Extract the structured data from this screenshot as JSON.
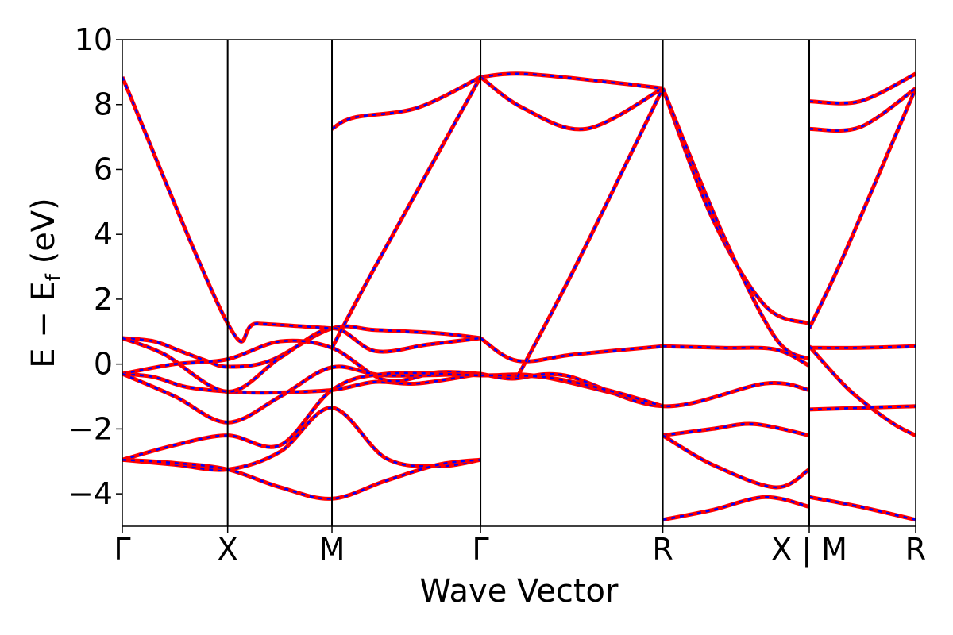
{
  "chart_data": {
    "type": "line",
    "title": "",
    "xlabel": "Wave Vector",
    "ylabel_parts": {
      "main": "E − E",
      "sub": "f",
      "unit": " (eV)"
    },
    "ylim": [
      -5,
      10
    ],
    "yticks": [
      "−4",
      "−2",
      "0",
      "2",
      "4",
      "6",
      "8",
      "10"
    ],
    "ytick_values": [
      -4,
      -2,
      0,
      2,
      4,
      6,
      8,
      10
    ],
    "xlim": [
      0,
      7.53
    ],
    "kpath_labels": [
      "Γ",
      "X",
      "M",
      "Γ",
      "R",
      "X | M",
      "R"
    ],
    "kpath_positions": [
      0,
      1.0,
      1.99,
      3.4,
      5.13,
      6.52,
      7.53
    ],
    "grid": false,
    "legend": "none",
    "colors": {
      "band_solid": "#ff0000",
      "band_dashed": "#0000ff",
      "divider": "#000000"
    },
    "series_note_style": "red solid with blue dashed overlay",
    "bands": [
      {
        "x": [
          0,
          0.3,
          0.55,
          0.8,
          1.0,
          1.4,
          1.99,
          2.4,
          3.0,
          3.4
        ],
        "y": [
          0.8,
          0.7,
          0.4,
          0.1,
          -0.08,
          0.1,
          1.1,
          1.05,
          0.95,
          0.8
        ]
      },
      {
        "x": [
          0,
          0.3,
          0.6,
          1.0,
          1.4,
          1.99,
          2.4,
          2.8,
          3.4
        ],
        "y": [
          -0.3,
          -0.4,
          -0.7,
          -0.85,
          -0.88,
          -0.8,
          -0.55,
          -0.6,
          -0.3
        ]
      },
      {
        "x": [
          0,
          0.4,
          1.0,
          1.5,
          1.99,
          2.4,
          2.9,
          3.4
        ],
        "y": [
          0.8,
          0.3,
          -0.85,
          0.2,
          1.1,
          0.4,
          0.6,
          0.8
        ]
      },
      {
        "x": [
          0,
          0.5,
          1.0,
          1.5,
          1.99,
          2.5,
          3.0,
          3.4
        ],
        "y": [
          -0.3,
          0.0,
          0.15,
          0.7,
          0.5,
          -0.5,
          -0.25,
          -0.3
        ]
      },
      {
        "x": [
          0,
          0.5,
          1.0,
          1.5,
          1.99,
          2.5,
          3.4
        ],
        "y": [
          -0.3,
          -1.0,
          -1.8,
          -1.0,
          -0.1,
          -0.35,
          -0.3
        ]
      },
      {
        "x": [
          0,
          0.5,
          1.0,
          1.5,
          1.99,
          2.5,
          3.4,
          4.0,
          5.13
        ],
        "y": [
          -2.95,
          -2.5,
          -2.2,
          -2.5,
          -0.8,
          -0.3,
          -0.35,
          -0.4,
          -1.3
        ]
      },
      {
        "x": [
          0,
          0.5,
          1.0,
          1.5,
          1.99,
          2.5,
          3.0,
          3.4
        ],
        "y": [
          -2.95,
          -3.1,
          -3.25,
          -2.7,
          -1.35,
          -2.9,
          -3.15,
          -2.95
        ]
      },
      {
        "x": [
          0,
          0.5,
          1.0,
          1.5,
          1.99,
          2.5,
          3.0,
          3.4
        ],
        "y": [
          -2.95,
          -3.05,
          -3.25,
          -3.8,
          -4.15,
          -3.6,
          -3.1,
          -2.95
        ]
      },
      {
        "x": [
          0,
          1.0,
          1.28,
          1.99
        ],
        "y": [
          8.85,
          1.25,
          1.25,
          1.1
        ]
      },
      {
        "x": [
          3.4,
          3.75,
          4.3,
          5.13
        ],
        "y": [
          0.8,
          0.1,
          0.3,
          0.55
        ]
      },
      {
        "x": [
          3.4,
          3.7,
          4.2,
          5.13,
          6.1,
          6.52
        ],
        "y": [
          -0.3,
          -0.45,
          -0.35,
          -1.3,
          -0.6,
          -0.8
        ]
      },
      {
        "x": [
          3.4,
          4.0,
          4.6,
          5.13
        ],
        "y": [
          -0.35,
          -0.4,
          -0.8,
          -1.3
        ]
      },
      {
        "x": [
          3.4,
          3.8,
          4.6,
          5.13
        ],
        "y": [
          8.85,
          8.95,
          8.7,
          8.5
        ]
      },
      {
        "x": [
          3.4,
          3.8,
          4.4,
          5.13
        ],
        "y": [
          8.85,
          7.9,
          7.25,
          8.5
        ]
      },
      {
        "x": [
          1.99,
          2.2,
          2.8,
          3.4
        ],
        "y": [
          7.25,
          7.6,
          7.9,
          8.85
        ]
      },
      {
        "x": [
          1.99,
          2.4,
          3.4
        ],
        "y": [
          0.5,
          3.0,
          8.85
        ]
      },
      {
        "x": [
          3.75,
          4.3,
          5.13
        ],
        "y": [
          -0.4,
          3.0,
          8.5
        ]
      },
      {
        "x": [
          5.13,
          5.6,
          6.1,
          6.52
        ],
        "y": [
          8.5,
          4.5,
          1.8,
          1.25
        ]
      },
      {
        "x": [
          5.13,
          5.7,
          6.2,
          6.52
        ],
        "y": [
          8.5,
          4.0,
          0.8,
          0.15
        ]
      },
      {
        "x": [
          5.13,
          5.7,
          6.2,
          6.52
        ],
        "y": [
          0.55,
          0.5,
          0.45,
          -0.05
        ]
      },
      {
        "x": [
          5.13,
          5.6,
          6.0,
          6.52
        ],
        "y": [
          -2.2,
          -2.0,
          -1.85,
          -2.2
        ]
      },
      {
        "x": [
          5.13,
          5.6,
          6.2,
          6.52
        ],
        "y": [
          -2.2,
          -3.1,
          -3.8,
          -3.25
        ]
      },
      {
        "x": [
          5.13,
          5.6,
          6.1,
          6.52
        ],
        "y": [
          -4.8,
          -4.5,
          -4.1,
          -4.4
        ]
      },
      {
        "x": [
          6.52,
          6.8,
          7.2,
          7.53
        ],
        "y": [
          1.1,
          3.0,
          6.0,
          8.5
        ]
      },
      {
        "x": [
          6.52,
          7.0,
          7.53
        ],
        "y": [
          8.1,
          8.1,
          8.95
        ]
      },
      {
        "x": [
          6.52,
          7.0,
          7.53
        ],
        "y": [
          7.25,
          7.3,
          8.5
        ]
      },
      {
        "x": [
          6.52,
          7.0,
          7.53
        ],
        "y": [
          0.5,
          0.5,
          0.55
        ]
      },
      {
        "x": [
          6.52,
          6.9,
          7.3,
          7.53
        ],
        "y": [
          0.55,
          -0.8,
          -1.8,
          -2.2
        ]
      },
      {
        "x": [
          6.52,
          7.0,
          7.53
        ],
        "y": [
          -1.4,
          -1.35,
          -1.3
        ]
      },
      {
        "x": [
          6.52,
          7.0,
          7.53
        ],
        "y": [
          -4.1,
          -4.4,
          -4.8
        ]
      }
    ]
  }
}
